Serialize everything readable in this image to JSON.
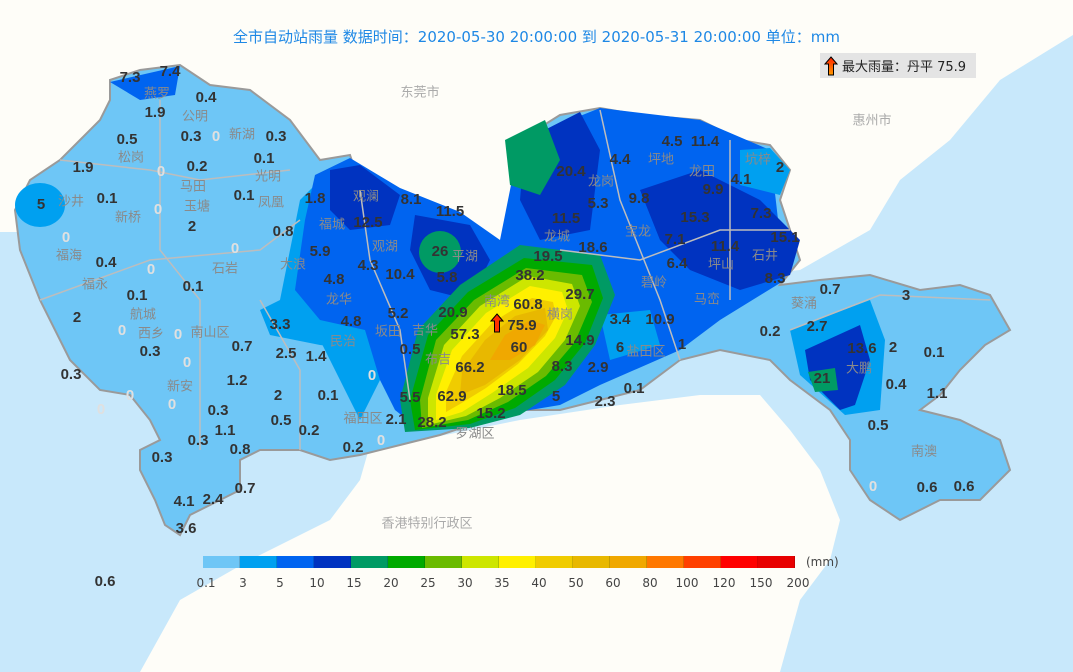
{
  "header": {
    "title": "全市自动站雨量  数据时间：2020-05-30 20:00:00 到 2020-05-31 20:00:00  单位：mm"
  },
  "max_rain": {
    "icon": "red-up-arrow-icon",
    "label": "最大雨量：丹平 75.9"
  },
  "cities": [
    "东莞市",
    "惠州市",
    "香港特别行政区"
  ],
  "places": [
    "燕罗",
    "公明",
    "新湖",
    "松岗",
    "马田",
    "光明",
    "沙井",
    "新桥",
    "玉塘",
    "凤凰",
    "福海",
    "石岩",
    "福永",
    "大浪",
    "福城",
    "观澜",
    "观湖",
    "平湖",
    "龙华",
    "坂田",
    "民治",
    "航城",
    "西乡",
    "新安",
    "南山区",
    "福田区",
    "吉华",
    "南湾",
    "横岗",
    "布吉",
    "罗湖区",
    "龙岗",
    "龙城",
    "宝龙",
    "坪地",
    "坑梓",
    "坪山",
    "石井",
    "碧岭",
    "马峦",
    "盐田区",
    "葵涌",
    "大鹏",
    "南澳",
    "龙田"
  ],
  "stations": [
    "7.3",
    "7.4",
    "0.4",
    "1.9",
    "0.5",
    "0.3",
    "0",
    "0.3",
    "0.1",
    "1.9",
    "0.2",
    "0",
    "5",
    "0.1",
    "0.1",
    "1.8",
    "0",
    "2",
    "0.8",
    "0",
    "0",
    "0.4",
    "0",
    "0.1",
    "0.1",
    "2",
    "0",
    "0",
    "0.3",
    "0",
    "0.3",
    "0",
    "0",
    "0",
    "1.2",
    "0.7",
    "2.5",
    "1.4",
    "3.3",
    "4.8",
    "5.2",
    "0.5",
    "0",
    "2",
    "0.1",
    "0.3",
    "0.5",
    "0.2",
    "1.1",
    "0.3",
    "0.8",
    "0.3",
    "0.2",
    "0",
    "5.5",
    "2.1",
    "0.7",
    "4.1",
    "2.4",
    "3.6",
    "0.6",
    "12.5",
    "8.1",
    "11.5",
    "5.9",
    "26",
    "4.3",
    "4.8",
    "10.4",
    "5.8",
    "20.9",
    "57.3",
    "75.9",
    "60.8",
    "38.2",
    "29.7",
    "19.5",
    "60",
    "66.2",
    "62.9",
    "18.5",
    "28.2",
    "15.2",
    "14.9",
    "8.3",
    "2.9",
    "5",
    "20.4",
    "4.4",
    "4.5",
    "11.4",
    "2",
    "4.1",
    "9.9",
    "5.3",
    "9.8",
    "11.5",
    "18.6",
    "15.3",
    "7.3",
    "15.1",
    "7.1",
    "11.4",
    "6.4",
    "8.3",
    "3.4",
    "10.9",
    "6",
    "1",
    "0.1",
    "2.3",
    "0.7",
    "3",
    "2.7",
    "0.2",
    "13.6",
    "2",
    "0.1",
    "21",
    "0.4",
    "1.1",
    "0.5",
    "0.6",
    "0.6",
    "0"
  ],
  "legend": {
    "unit": "(mm)",
    "ticks": [
      "0.1",
      "3",
      "5",
      "10",
      "15",
      "20",
      "25",
      "30",
      "35",
      "40",
      "50",
      "60",
      "80",
      "100",
      "120",
      "150",
      "200"
    ],
    "colors": [
      "#6ec6f6",
      "#00a0f0",
      "#0064f0",
      "#0033c0",
      "#009a64",
      "#00aa00",
      "#6abb00",
      "#cde600",
      "#fff000",
      "#f0cc00",
      "#e8b800",
      "#f0a800",
      "#ff7800",
      "#ff4000",
      "#ff0000",
      "#e80000"
    ]
  }
}
